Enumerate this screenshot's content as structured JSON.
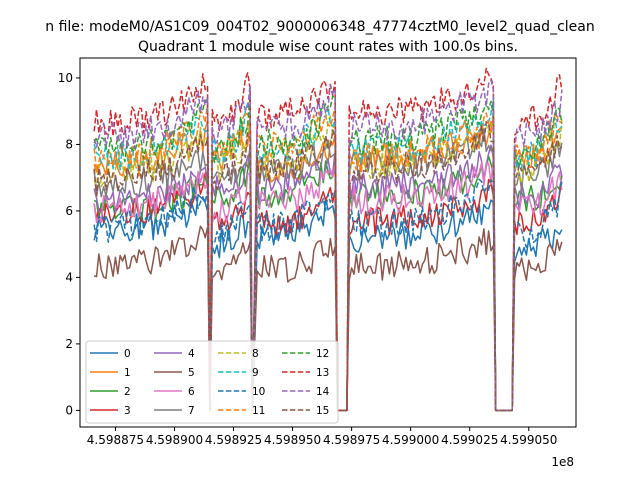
{
  "figure": {
    "suptitle": "n file: modeM0/AS1C09_004T02_9000006348_47774cztM0_level2_quad_clean",
    "offset_text": "1e8"
  },
  "chart_data": {
    "type": "line",
    "title": "Quadrant 1 module wise count rates with 100.0s bins.",
    "xlabel": "",
    "ylabel": "",
    "x_unit_multiplier": 100000000,
    "xlim": [
      4.59886,
      4.59907
    ],
    "ylim": [
      -0.5,
      10.6
    ],
    "x_ticks": [
      4.598875,
      4.5989,
      4.598925,
      4.59895,
      4.598975,
      4.599,
      4.599025,
      4.59905
    ],
    "x_tick_labels": [
      "4.598875",
      "4.598900",
      "4.598925",
      "4.598950",
      "4.598975",
      "4.599000",
      "4.599025",
      "4.599050"
    ],
    "y_ticks": [
      0,
      2,
      4,
      6,
      8,
      10
    ],
    "y_tick_labels": [
      "0",
      "2",
      "4",
      "6",
      "8",
      "10"
    ],
    "grid": false,
    "legend": {
      "position": "lower-left",
      "columns": 4
    },
    "x_range": [
      4.598866,
      4.599064
    ],
    "segments": [
      {
        "x_range": [
          4.598866,
          4.598914
        ],
        "gap_start": 4.598915
      },
      {
        "x_range": [
          4.598916,
          4.598932
        ],
        "gap_start": 4.598933
      },
      {
        "x_range": [
          4.598935,
          4.598968
        ],
        "gap_start": 4.598969
      },
      {
        "x_range": [
          4.598969,
          4.598973
        ],
        "value": 0
      },
      {
        "x_range": [
          4.598974,
          4.599035
        ],
        "gap_start": 4.599036
      },
      {
        "x_range": [
          4.599036,
          4.599043
        ],
        "value": 0
      },
      {
        "x_range": [
          4.599044,
          4.599064
        ]
      }
    ],
    "series": [
      {
        "name": "0",
        "color": "#1f77b4",
        "dash": "solid",
        "levels": [
          5.4,
          5.0,
          5.3,
          4.6,
          5.2,
          4.9,
          4.8
        ]
      },
      {
        "name": "1",
        "color": "#ff7f0e",
        "dash": "solid",
        "levels": [
          7.4,
          7.6,
          7.1,
          7.0,
          7.6,
          7.2,
          7.5
        ]
      },
      {
        "name": "2",
        "color": "#2ca02c",
        "dash": "solid",
        "levels": [
          6.0,
          6.4,
          6.5,
          6.2,
          6.4,
          6.1,
          6.3
        ]
      },
      {
        "name": "3",
        "color": "#d62728",
        "dash": "solid",
        "levels": [
          5.9,
          5.6,
          5.6,
          5.3,
          5.7,
          5.4,
          5.6
        ]
      },
      {
        "name": "4",
        "color": "#9467bd",
        "dash": "solid",
        "levels": [
          6.3,
          6.6,
          6.7,
          6.5,
          6.7,
          6.4,
          6.4
        ]
      },
      {
        "name": "5",
        "color": "#8c564b",
        "dash": "solid",
        "levels": [
          4.4,
          4.1,
          4.2,
          3.9,
          4.3,
          4.1,
          4.2
        ]
      },
      {
        "name": "6",
        "color": "#e377c2",
        "dash": "solid",
        "levels": [
          6.1,
          6.0,
          6.2,
          5.8,
          6.3,
          6.0,
          6.1
        ]
      },
      {
        "name": "7",
        "color": "#7f7f7f",
        "dash": "solid",
        "levels": [
          6.8,
          7.0,
          7.2,
          6.8,
          7.3,
          6.9,
          7.0
        ]
      },
      {
        "name": "8",
        "color": "#bcbd22",
        "dash": "dashed",
        "levels": [
          7.1,
          7.3,
          7.4,
          7.1,
          7.4,
          7.1,
          7.2
        ]
      },
      {
        "name": "9",
        "color": "#17becf",
        "dash": "dashed",
        "levels": [
          7.6,
          7.8,
          7.8,
          7.5,
          7.8,
          7.5,
          7.6
        ]
      },
      {
        "name": "10",
        "color": "#1f77b4",
        "dash": "dashed",
        "levels": [
          5.5,
          5.4,
          5.5,
          5.0,
          5.6,
          5.3,
          5.3
        ]
      },
      {
        "name": "11",
        "color": "#ff7f0e",
        "dash": "dashed",
        "levels": [
          7.6,
          7.8,
          7.9,
          7.3,
          7.6,
          7.3,
          7.7
        ]
      },
      {
        "name": "12",
        "color": "#2ca02c",
        "dash": "dashed",
        "levels": [
          7.8,
          7.9,
          8.0,
          7.6,
          8.1,
          7.7,
          7.8
        ]
      },
      {
        "name": "13",
        "color": "#d62728",
        "dash": "dashed",
        "levels": [
          8.6,
          8.8,
          8.8,
          8.4,
          8.9,
          8.6,
          8.7
        ]
      },
      {
        "name": "14",
        "color": "#9467bd",
        "dash": "dashed",
        "levels": [
          8.2,
          8.4,
          8.4,
          8.0,
          8.5,
          8.1,
          8.2
        ]
      },
      {
        "name": "15",
        "color": "#8c564b",
        "dash": "dashed",
        "levels": [
          6.9,
          7.1,
          7.2,
          6.9,
          7.2,
          7.0,
          7.1
        ]
      }
    ]
  }
}
